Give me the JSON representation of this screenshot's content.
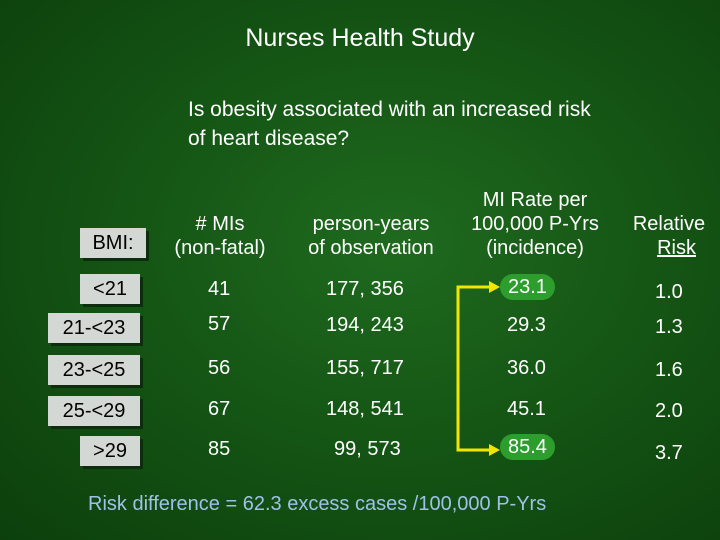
{
  "title": "Nurses Health Study",
  "question": "Is obesity associated with an increased risk of heart disease?",
  "bmi_label": "BMI:",
  "headers": {
    "mis_line1": "# MIs",
    "mis_line2": "(non-fatal)",
    "py_line1": "person-years",
    "py_line2": "of observation",
    "rate_line1": "MI Rate per",
    "rate_line2": "100,000 P-Yrs",
    "rate_line3": "(incidence)",
    "rr_line1": "Relative",
    "rr_line2": "Risk"
  },
  "rows": [
    {
      "bmi": "<21",
      "mis": "41",
      "py": "177, 356",
      "rate": "23.1",
      "rr": "1.0"
    },
    {
      "bmi": "21-<23",
      "mis": "57",
      "py": "194, 243",
      "rate": "29.3",
      "rr": "1.3"
    },
    {
      "bmi": "23-<25",
      "mis": "56",
      "py": "155, 717",
      "rate": "36.0",
      "rr": "1.6"
    },
    {
      "bmi": "25-<29",
      "mis": "67",
      "py": "148, 541",
      "rate": "45.1",
      "rr": "2.0"
    },
    {
      "bmi": ">29",
      "mis": "85",
      "py": "99, 573",
      "rate": "85.4",
      "rr": "3.7"
    }
  ],
  "footer": "Risk difference = 62.3 excess cases /100,000 P-Yrs",
  "colors": {
    "background": "#155615",
    "highlight": "#2d9e2d",
    "arrow": "#f2e600",
    "footer_text": "#9fc1e8",
    "bmi_box": "#d4d8d4"
  }
}
